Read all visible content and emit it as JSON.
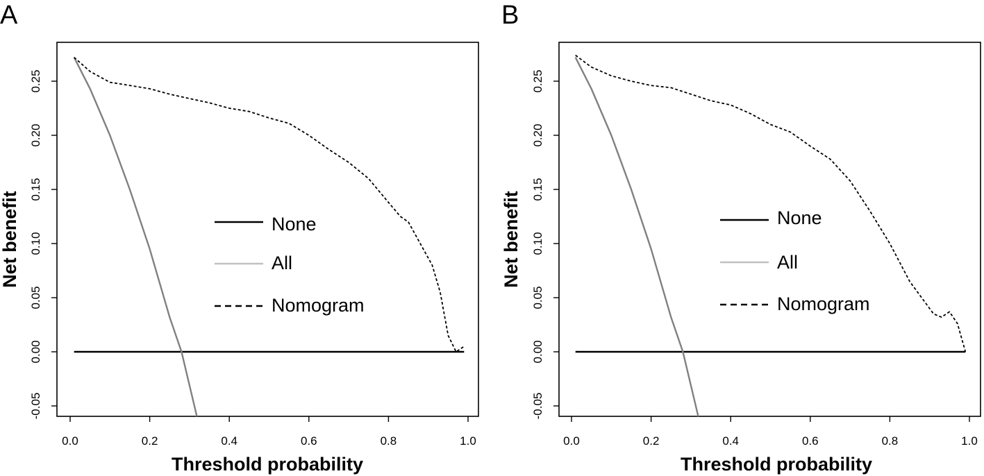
{
  "chart_data": [
    {
      "panel": "A",
      "type": "line",
      "xlabel": "Threshold probability",
      "ylabel": "Net benefit",
      "xlim": [
        0,
        1
      ],
      "ylim": [
        -0.06,
        0.28
      ],
      "xticks": [
        "0.0",
        "0.2",
        "0.4",
        "0.6",
        "0.8",
        "1.0"
      ],
      "yticks": [
        "-0.05",
        "0.00",
        "0.05",
        "0.10",
        "0.15",
        "0.20",
        "0.25"
      ],
      "legend": {
        "placement": "center-right",
        "entries": [
          "None",
          "All",
          "Nomogram"
        ]
      },
      "grid": false,
      "series": [
        {
          "name": "None",
          "color": "#000000",
          "style": "solid",
          "x": [
            0.01,
            0.99
          ],
          "y": [
            0.0,
            0.0
          ]
        },
        {
          "name": "All",
          "color": "#808080",
          "style": "solid",
          "x": [
            0.01,
            0.05,
            0.1,
            0.15,
            0.2,
            0.25,
            0.28,
            0.32
          ],
          "y": [
            0.272,
            0.243,
            0.2,
            0.15,
            0.095,
            0.032,
            0.0,
            -0.062
          ]
        },
        {
          "name": "Nomogram",
          "color": "#000000",
          "style": "dashed",
          "x": [
            0.01,
            0.05,
            0.1,
            0.15,
            0.2,
            0.25,
            0.3,
            0.35,
            0.4,
            0.45,
            0.5,
            0.55,
            0.6,
            0.65,
            0.7,
            0.75,
            0.8,
            0.83,
            0.85,
            0.88,
            0.91,
            0.93,
            0.95,
            0.97,
            0.99
          ],
          "y": [
            0.272,
            0.259,
            0.249,
            0.246,
            0.243,
            0.238,
            0.234,
            0.23,
            0.225,
            0.222,
            0.216,
            0.211,
            0.2,
            0.187,
            0.175,
            0.16,
            0.138,
            0.125,
            0.12,
            0.1,
            0.08,
            0.055,
            0.015,
            0.0,
            0.005
          ]
        }
      ]
    },
    {
      "panel": "B",
      "type": "line",
      "xlabel": "Threshold probability",
      "ylabel": "Net benefit",
      "xlim": [
        0,
        1
      ],
      "ylim": [
        -0.06,
        0.28
      ],
      "xticks": [
        "0.0",
        "0.2",
        "0.4",
        "0.6",
        "0.8",
        "1.0"
      ],
      "yticks": [
        "-0.05",
        "0.00",
        "0.05",
        "0.10",
        "0.15",
        "0.20",
        "0.25"
      ],
      "legend": {
        "placement": "center-right",
        "entries": [
          "None",
          "All",
          "Nomogram"
        ]
      },
      "grid": false,
      "series": [
        {
          "name": "None",
          "color": "#000000",
          "style": "solid",
          "x": [
            0.01,
            0.99
          ],
          "y": [
            0.0,
            0.0
          ]
        },
        {
          "name": "All",
          "color": "#808080",
          "style": "solid",
          "x": [
            0.01,
            0.05,
            0.1,
            0.15,
            0.2,
            0.25,
            0.28,
            0.32
          ],
          "y": [
            0.272,
            0.243,
            0.2,
            0.15,
            0.095,
            0.032,
            0.0,
            -0.062
          ]
        },
        {
          "name": "Nomogram",
          "color": "#000000",
          "style": "dashed",
          "x": [
            0.01,
            0.05,
            0.1,
            0.15,
            0.2,
            0.25,
            0.3,
            0.35,
            0.4,
            0.45,
            0.5,
            0.55,
            0.6,
            0.65,
            0.7,
            0.75,
            0.8,
            0.85,
            0.88,
            0.91,
            0.93,
            0.95,
            0.97,
            0.99
          ],
          "y": [
            0.274,
            0.263,
            0.255,
            0.25,
            0.246,
            0.244,
            0.238,
            0.232,
            0.228,
            0.22,
            0.21,
            0.203,
            0.19,
            0.178,
            0.158,
            0.13,
            0.1,
            0.065,
            0.05,
            0.035,
            0.032,
            0.037,
            0.026,
            0.0
          ]
        }
      ]
    }
  ]
}
